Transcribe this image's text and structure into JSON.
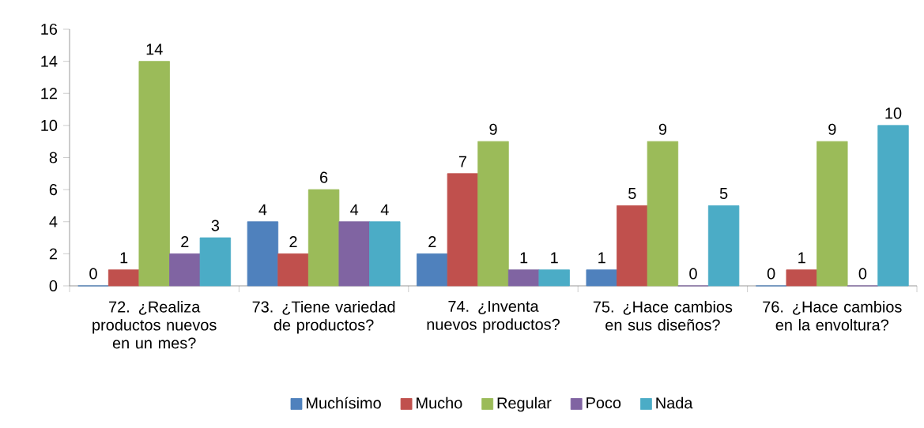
{
  "chart_data": {
    "type": "bar",
    "categories": [
      "72. ¿Realiza productos nuevos en un mes?",
      "73. ¿Tiene variedad de productos?",
      "74. ¿Inventa nuevos productos?",
      "75. ¿Hace cambios en sus diseños?",
      "76. ¿Hace cambios en la envoltura?"
    ],
    "series": [
      {
        "name": "Muchísimo",
        "color": "#4f81bd",
        "values": [
          0,
          4,
          2,
          1,
          0
        ]
      },
      {
        "name": "Mucho",
        "color": "#c0504d",
        "values": [
          1,
          2,
          7,
          5,
          1
        ]
      },
      {
        "name": "Regular",
        "color": "#9bbb59",
        "values": [
          14,
          6,
          9,
          9,
          9
        ]
      },
      {
        "name": "Poco",
        "color": "#8064a2",
        "values": [
          2,
          4,
          1,
          0,
          0
        ]
      },
      {
        "name": "Nada",
        "color": "#4bacc6",
        "values": [
          3,
          4,
          1,
          5,
          10
        ]
      }
    ],
    "ylim": [
      0,
      16
    ],
    "yticks": [
      0,
      2,
      4,
      6,
      8,
      10,
      12,
      14,
      16
    ],
    "data_labels": true,
    "legend": "bottom",
    "grid": false
  }
}
